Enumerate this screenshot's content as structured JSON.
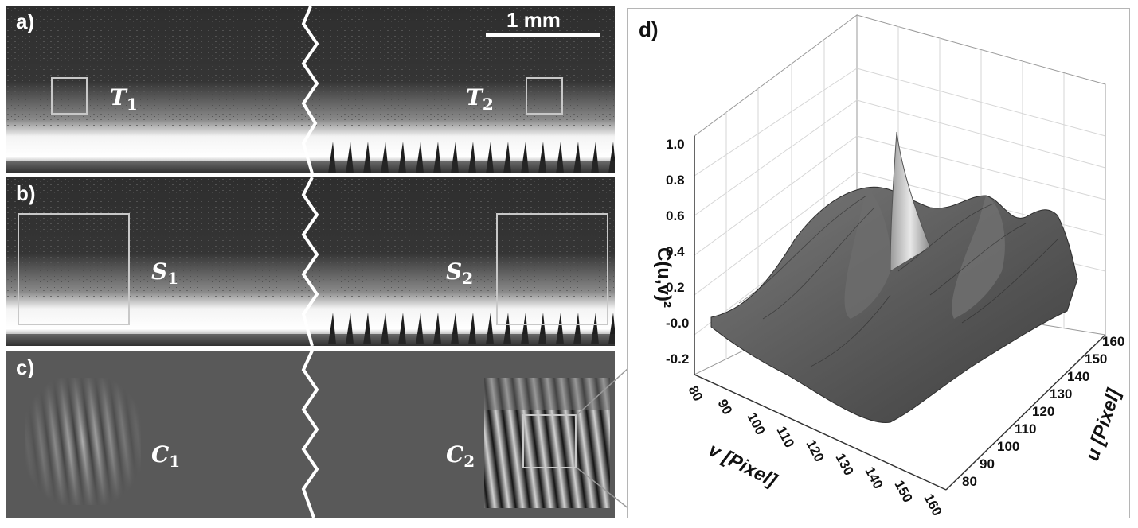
{
  "panel_a": {
    "label": "a)",
    "scale_text": "1 mm",
    "sym1": "T",
    "sub1": "1",
    "sym2": "T",
    "sub2": "2"
  },
  "panel_b": {
    "label": "b)",
    "sym1": "S",
    "sub1": "1",
    "sym2": "S",
    "sub2": "2"
  },
  "panel_c": {
    "label": "c)",
    "sym1": "C",
    "sub1": "1",
    "sym2": "C",
    "sub2": "2"
  },
  "panel_d": {
    "label": "d)",
    "z_axis_label": "C(u,v)²",
    "z_ticks": [
      "1.0",
      "0.8",
      "0.6",
      "0.4",
      "0.2",
      "-0.0",
      "-0.2"
    ],
    "v_axis_label": "v [Pixel]",
    "v_ticks": [
      "80",
      "90",
      "100",
      "110",
      "120",
      "130",
      "140",
      "150",
      "160"
    ],
    "u_axis_label": "u [Pixel]",
    "u_ticks": [
      "80",
      "90",
      "100",
      "110",
      "120",
      "130",
      "140",
      "150",
      "160"
    ]
  }
}
